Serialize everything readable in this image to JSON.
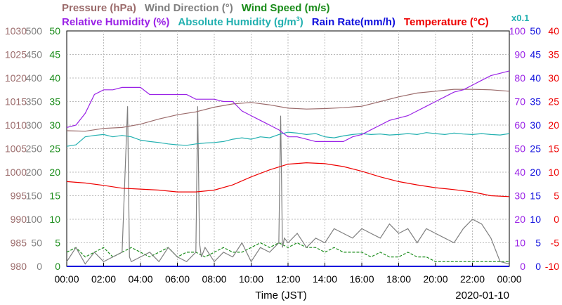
{
  "chart_data": {
    "type": "line",
    "legend_row1": [
      {
        "name": "Pressure (hPa)",
        "color": "#9b6b6b"
      },
      {
        "name": "Wind Direction (°)",
        "color": "#7f7f7f"
      },
      {
        "name": "Wind Speed (m/s)",
        "color": "#1a8c1a"
      }
    ],
    "legend_row2_a": [
      {
        "name": "Relative Humidity (%)",
        "color": "#9a22e6"
      },
      {
        "name": "Absolute Humidity (g/m",
        "color": "#22b0b0"
      },
      {
        "name": "3",
        "color": "#22b0b0"
      },
      {
        "name": ")",
        "color": "#22b0b0"
      },
      {
        "name": "Rain Rate(mm/h)",
        "color": "#1010dd"
      },
      {
        "name": "Temperature (°C)",
        "color": "#ee0000"
      }
    ],
    "multiplier_label": "x0.1",
    "xlabel": "Time (JST)",
    "date_label": "2020-01-10",
    "x_ticks": [
      "00:00",
      "02:00",
      "04:00",
      "06:00",
      "08:00",
      "10:00",
      "12:00",
      "14:00",
      "16:00",
      "18:00",
      "20:00",
      "22:00",
      "00:00"
    ],
    "x_range_hours": [
      0,
      24
    ],
    "axes": {
      "pressure": {
        "color": "#9b6b6b",
        "ticks": [
          "980",
          "985",
          "990",
          "995",
          "1000",
          "1005",
          "1010",
          "1015",
          "1020",
          "1025",
          "1030"
        ],
        "range": [
          980,
          1030
        ]
      },
      "wind_direction": {
        "color": "#7f7f7f",
        "ticks": [
          "0",
          "50",
          "100",
          "150",
          "200",
          "250",
          "300",
          "350",
          "400",
          "450",
          "500"
        ],
        "range": [
          0,
          500
        ]
      },
      "wind_speed": {
        "color": "#1a8c1a",
        "ticks": [
          "0",
          "5",
          "10",
          "15",
          "20",
          "25",
          "30",
          "35",
          "40",
          "45",
          "50"
        ],
        "range": [
          0,
          50
        ]
      },
      "humidity": {
        "color": "#9a22e6",
        "ticks": [
          "0",
          "10",
          "20",
          "30",
          "40",
          "50",
          "60",
          "70",
          "80",
          "90",
          "100"
        ],
        "range": [
          0,
          100
        ]
      },
      "rain_rate": {
        "color": "#1010dd",
        "ticks": [
          "0",
          "5",
          "10",
          "15",
          "20",
          "25",
          "30",
          "35",
          "40",
          "45",
          "50"
        ],
        "range": [
          0,
          50
        ]
      },
      "temperature": {
        "color": "#ee0000",
        "ticks": [
          "-10",
          "-5",
          "0",
          "5",
          "10",
          "15",
          "20",
          "25",
          "30",
          "35",
          "40"
        ],
        "range": [
          -10,
          40
        ]
      }
    },
    "series": [
      {
        "key": "pressure",
        "color": "#9b6b6b",
        "x": [
          0,
          1,
          2,
          3,
          4,
          5,
          6,
          7,
          8,
          9,
          10,
          11,
          12,
          13,
          14,
          15,
          16,
          17,
          18,
          19,
          20,
          21,
          22,
          23,
          24
        ],
        "values": [
          1008.8,
          1008.7,
          1009.3,
          1009.5,
          1010.2,
          1011.3,
          1012.2,
          1012.8,
          1013.8,
          1014.5,
          1014.8,
          1014.3,
          1013.6,
          1013.4,
          1013.5,
          1013.7,
          1014.0,
          1015.0,
          1016.0,
          1016.8,
          1017.2,
          1017.6,
          1017.6,
          1017.5,
          1017.2
        ]
      },
      {
        "key": "wind_direction",
        "color": "#7f7f7f",
        "x": [
          0,
          0.5,
          1,
          1.5,
          2,
          2.5,
          3,
          3.3,
          3.4,
          3.5,
          4,
          4.5,
          5,
          5.5,
          6,
          6.5,
          7,
          7.1,
          7.2,
          7.3,
          7.5,
          8,
          8.5,
          9,
          9.5,
          10,
          10.5,
          11,
          11.5,
          11.6,
          11.7,
          11.8,
          12,
          12.5,
          13,
          13.5,
          14,
          14.5,
          15,
          15.5,
          16,
          16.5,
          17,
          17.5,
          18,
          18.5,
          19,
          19.5,
          20,
          20.5,
          21,
          21.5,
          22,
          22.5,
          23,
          23.5,
          24
        ],
        "values": [
          10,
          40,
          5,
          30,
          10,
          20,
          30,
          340,
          20,
          10,
          20,
          30,
          10,
          40,
          20,
          10,
          30,
          340,
          50,
          20,
          40,
          10,
          30,
          20,
          50,
          10,
          40,
          30,
          50,
          320,
          40,
          60,
          50,
          70,
          40,
          60,
          50,
          80,
          70,
          60,
          80,
          70,
          60,
          90,
          70,
          80,
          50,
          80,
          70,
          60,
          50,
          80,
          100,
          90,
          60,
          10,
          5
        ]
      },
      {
        "key": "wind_speed",
        "color": "#1a8c1a",
        "x": [
          0,
          0.5,
          1,
          1.5,
          2,
          2.5,
          3,
          3.5,
          4,
          4.5,
          5,
          5.5,
          6,
          6.5,
          7,
          7.5,
          8,
          8.5,
          9,
          9.5,
          10,
          10.5,
          11,
          11.5,
          12,
          12.5,
          13,
          13.5,
          14,
          14.5,
          15,
          15.5,
          16,
          16.5,
          17,
          17.5,
          18,
          18.5,
          19,
          19.5,
          20,
          20.5,
          21,
          21.5,
          22,
          22.5,
          23,
          23.5,
          24
        ],
        "values": [
          3,
          4,
          2,
          3,
          4,
          2,
          3,
          4,
          3,
          2,
          3,
          4,
          2,
          3,
          3,
          2,
          3,
          4,
          3,
          3,
          4,
          5,
          4,
          5,
          4,
          5,
          4,
          4,
          3,
          4,
          3,
          3,
          3,
          2,
          3,
          2,
          2,
          3,
          2,
          2,
          1,
          1,
          1,
          1,
          1,
          1,
          1,
          1,
          1
        ]
      },
      {
        "key": "humidity",
        "color": "#9a22e6",
        "x": [
          0,
          0.5,
          1,
          1.5,
          2,
          2.5,
          3,
          3.5,
          4,
          4.5,
          5,
          5.5,
          6,
          6.5,
          7,
          7.5,
          8,
          8.5,
          9,
          9.5,
          10,
          10.5,
          11,
          11.5,
          12,
          12.5,
          13,
          13.5,
          14,
          14.5,
          15,
          15.5,
          16,
          16.5,
          17,
          17.5,
          18,
          18.5,
          19,
          19.5,
          20,
          20.5,
          21,
          21.5,
          22,
          22.5,
          23,
          23.5,
          24
        ],
        "values": [
          59,
          60,
          65,
          73,
          75,
          75,
          76,
          76,
          76,
          73,
          73,
          73,
          73,
          73,
          71,
          71,
          71,
          70,
          70,
          66,
          64,
          62,
          60,
          58,
          55,
          55,
          54,
          53,
          53,
          53,
          53,
          55,
          56,
          58,
          60,
          62,
          63,
          64,
          66,
          68,
          70,
          72,
          74,
          75,
          77,
          79,
          81,
          82,
          83
        ]
      },
      {
        "key": "abs_humidity",
        "color": "#22b0b0",
        "x": [
          0,
          0.5,
          1,
          1.5,
          2,
          2.5,
          3,
          3.5,
          4,
          4.5,
          5,
          5.5,
          6,
          6.5,
          7,
          7.5,
          8,
          8.5,
          9,
          9.5,
          10,
          10.5,
          11,
          11.5,
          12,
          12.5,
          13,
          13.5,
          14,
          14.5,
          15,
          15.5,
          16,
          16.5,
          17,
          17.5,
          18,
          18.5,
          19,
          19.5,
          20,
          20.5,
          21,
          21.5,
          22,
          22.5,
          23,
          23.5,
          24
        ],
        "values": [
          25.5,
          25.8,
          27.5,
          27.8,
          28.0,
          27.5,
          27.8,
          27.5,
          26.8,
          26.5,
          26.3,
          26.0,
          25.8,
          25.7,
          26.0,
          26.2,
          26.3,
          26.5,
          27.0,
          27.3,
          27.0,
          27.5,
          27.3,
          28.0,
          28.5,
          28.3,
          28.0,
          28.2,
          27.5,
          27.3,
          27.7,
          28.0,
          28.2,
          28.0,
          28.1,
          27.9,
          28.0,
          28.2,
          28.0,
          28.4,
          28.2,
          28.0,
          28.3,
          28.1,
          28.0,
          28.2,
          28.0,
          27.9,
          28.2
        ]
      },
      {
        "key": "temperature",
        "color": "#ee0000",
        "x": [
          0,
          1,
          2,
          3,
          4,
          5,
          6,
          7,
          8,
          9,
          10,
          11,
          12,
          13,
          14,
          15,
          16,
          17,
          18,
          19,
          20,
          21,
          22,
          23,
          24
        ],
        "values": [
          8.0,
          7.7,
          7.2,
          6.6,
          6.4,
          6.2,
          5.8,
          5.8,
          6.2,
          7.3,
          9.0,
          10.5,
          11.7,
          12.0,
          11.8,
          11.2,
          10.2,
          9.0,
          8.0,
          7.3,
          6.7,
          6.3,
          5.8,
          5.0,
          4.8
        ]
      },
      {
        "key": "rain_rate",
        "color": "#1010dd",
        "x": [
          0,
          24
        ],
        "values": [
          0,
          0
        ]
      }
    ]
  }
}
